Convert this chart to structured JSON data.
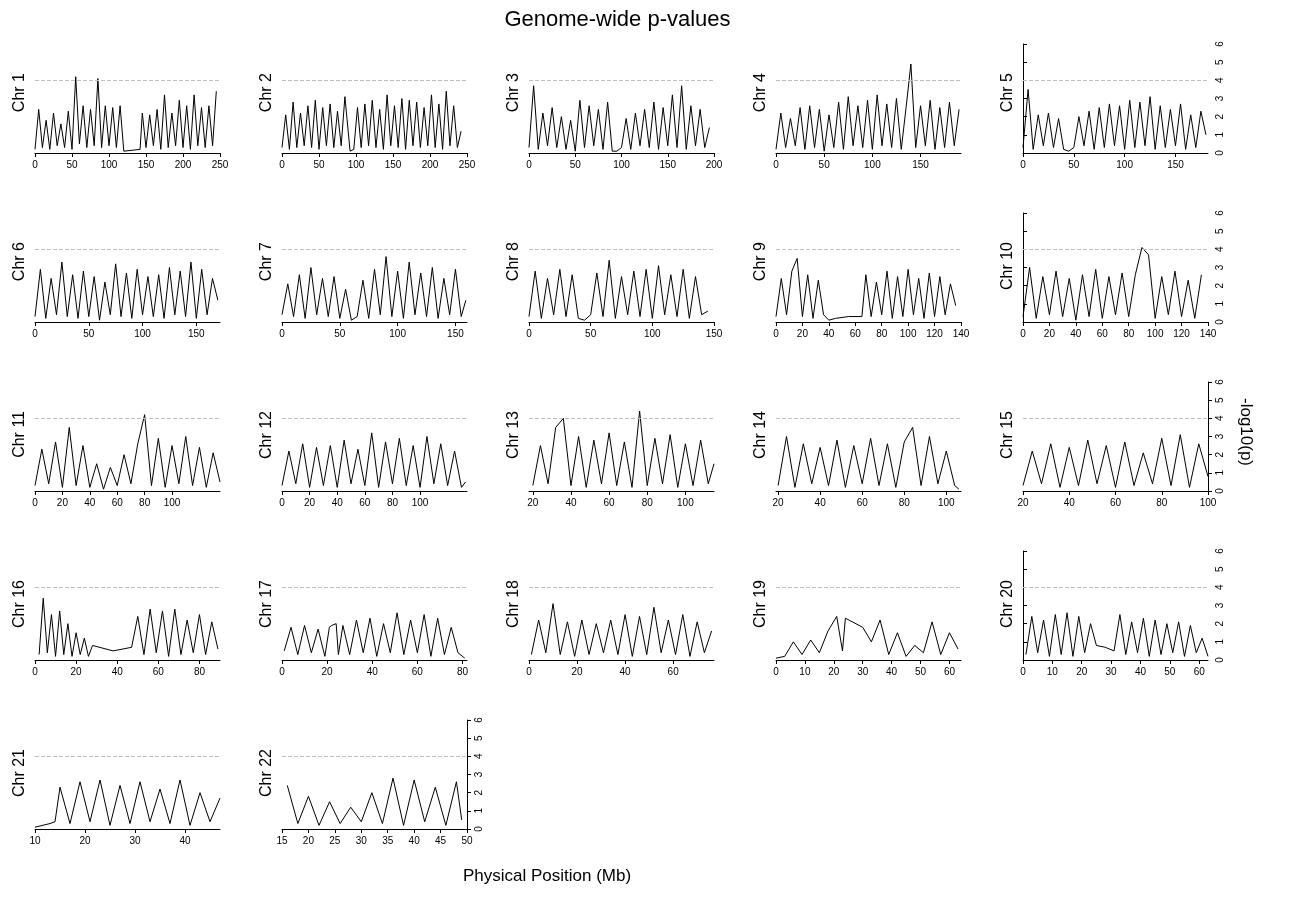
{
  "chart_data": [
    {
      "type": "line",
      "ylabel": "Chr 1",
      "xlim": [
        0,
        250
      ],
      "xticks": [
        0,
        50,
        100,
        150,
        200,
        250
      ],
      "ylim": [
        0,
        6
      ],
      "yticks": [
        0,
        1,
        2,
        3,
        4,
        5,
        6
      ],
      "tick_labels": "x",
      "grid": false,
      "marker": "none",
      "color": "#000000",
      "ref_lines": [
        {
          "axis": "y",
          "value": 4,
          "color": "#c0c0c0",
          "line_style": "dashed"
        }
      ],
      "x": [
        0,
        5,
        10,
        15,
        20,
        25,
        30,
        35,
        40,
        45,
        50,
        55,
        60,
        65,
        70,
        75,
        80,
        85,
        90,
        95,
        100,
        105,
        110,
        115,
        120,
        142,
        145,
        150,
        155,
        160,
        165,
        170,
        175,
        180,
        185,
        190,
        195,
        200,
        205,
        210,
        215,
        220,
        225,
        230,
        235,
        240,
        245
      ],
      "values": [
        0.2,
        2.4,
        0.3,
        1.8,
        0.2,
        2.2,
        0.4,
        1.6,
        0.3,
        2.3,
        0.2,
        4.2,
        0.5,
        2.6,
        0.3,
        2.4,
        0.4,
        4.1,
        0.3,
        2.6,
        0.4,
        2.5,
        0.3,
        2.6,
        0.1,
        0.2,
        2.2,
        0.3,
        2.1,
        0.4,
        2.4,
        0.2,
        3.2,
        0.3,
        2.2,
        0.4,
        2.9,
        0.3,
        2.6,
        0.2,
        3.2,
        0.4,
        2.5,
        0.3,
        2.6,
        0.4,
        3.4
      ]
    },
    {
      "type": "line",
      "ylabel": "Chr 2",
      "xlim": [
        0,
        250
      ],
      "xticks": [
        0,
        50,
        100,
        150,
        200,
        250
      ],
      "ylim": [
        0,
        6
      ],
      "yticks": [
        0,
        1,
        2,
        3,
        4,
        5,
        6
      ],
      "tick_labels": "x",
      "grid": false,
      "marker": "none",
      "color": "#000000",
      "ref_lines": [
        {
          "axis": "y",
          "value": 4,
          "color": "#c0c0c0",
          "line_style": "dashed"
        }
      ],
      "x": [
        0,
        5,
        10,
        15,
        20,
        25,
        30,
        35,
        40,
        45,
        50,
        55,
        60,
        65,
        70,
        75,
        80,
        85,
        92,
        97,
        102,
        107,
        112,
        117,
        122,
        127,
        132,
        137,
        142,
        147,
        152,
        157,
        162,
        167,
        172,
        177,
        182,
        187,
        192,
        197,
        202,
        207,
        212,
        217,
        222,
        227,
        232,
        237,
        242
      ],
      "values": [
        0.3,
        2.1,
        0.2,
        2.8,
        0.3,
        2.2,
        0.4,
        2.6,
        0.3,
        2.9,
        0.2,
        2.5,
        0.4,
        2.7,
        0.3,
        2.3,
        0.4,
        3.1,
        0.1,
        0.2,
        2.5,
        0.3,
        2.7,
        0.4,
        2.9,
        0.3,
        2.4,
        0.2,
        3.2,
        0.4,
        2.6,
        0.3,
        3.0,
        0.2,
        2.9,
        0.4,
        2.8,
        0.3,
        2.5,
        0.4,
        3.2,
        0.3,
        2.7,
        0.2,
        3.4,
        0.4,
        2.6,
        0.3,
        1.2
      ]
    },
    {
      "type": "line",
      "title": "Genome-wide p-values",
      "ylabel": "Chr 3",
      "xlim": [
        0,
        200
      ],
      "xticks": [
        0,
        50,
        100,
        150,
        200
      ],
      "ylim": [
        0,
        6
      ],
      "yticks": [
        0,
        1,
        2,
        3,
        4,
        5,
        6
      ],
      "tick_labels": "x",
      "grid": false,
      "marker": "none",
      "color": "#000000",
      "ref_lines": [
        {
          "axis": "y",
          "value": 4,
          "color": "#c0c0c0",
          "line_style": "dashed"
        }
      ],
      "x": [
        0,
        5,
        10,
        15,
        20,
        25,
        30,
        35,
        40,
        45,
        50,
        55,
        60,
        65,
        70,
        75,
        80,
        85,
        90,
        95,
        100,
        105,
        110,
        115,
        120,
        125,
        130,
        135,
        140,
        145,
        150,
        155,
        160,
        165,
        170,
        175,
        180,
        185,
        190,
        195
      ],
      "values": [
        0.3,
        3.7,
        0.2,
        2.2,
        0.4,
        2.5,
        0.3,
        2.0,
        0.2,
        1.8,
        0.1,
        2.9,
        0.3,
        2.6,
        0.4,
        2.4,
        0.2,
        2.8,
        0.1,
        0.1,
        0.3,
        1.9,
        0.2,
        2.2,
        0.4,
        2.4,
        0.3,
        2.8,
        0.2,
        2.5,
        0.4,
        3.2,
        0.3,
        3.7,
        0.2,
        2.6,
        0.4,
        2.4,
        0.3,
        1.4
      ]
    },
    {
      "type": "line",
      "ylabel": "Chr 4",
      "xlim": [
        0,
        192
      ],
      "xticks": [
        0,
        50,
        100,
        150
      ],
      "ylim": [
        0,
        6
      ],
      "yticks": [
        0,
        1,
        2,
        3,
        4,
        5,
        6
      ],
      "tick_labels": "x",
      "grid": false,
      "marker": "none",
      "color": "#000000",
      "ref_lines": [
        {
          "axis": "y",
          "value": 4,
          "color": "#c0c0c0",
          "line_style": "dashed"
        }
      ],
      "x": [
        0,
        5,
        10,
        15,
        20,
        25,
        30,
        35,
        40,
        45,
        50,
        55,
        60,
        65,
        70,
        75,
        80,
        85,
        90,
        95,
        100,
        105,
        110,
        115,
        120,
        125,
        130,
        135,
        140,
        145,
        150,
        155,
        160,
        165,
        170,
        175,
        180,
        185,
        190
      ],
      "values": [
        0.2,
        2.2,
        0.3,
        1.9,
        0.4,
        2.5,
        0.2,
        2.6,
        0.3,
        2.4,
        0.1,
        2.1,
        0.3,
        2.8,
        0.2,
        3.1,
        0.4,
        2.6,
        0.3,
        2.9,
        0.2,
        3.2,
        0.4,
        2.7,
        0.3,
        3.0,
        0.2,
        2.5,
        4.9,
        0.3,
        2.6,
        0.4,
        2.9,
        0.2,
        2.5,
        0.3,
        2.8,
        0.4,
        2.4
      ]
    },
    {
      "type": "line",
      "ylabel": "Chr 5",
      "xlim": [
        0,
        182
      ],
      "xticks": [
        0,
        50,
        100,
        150
      ],
      "ylim": [
        0,
        6
      ],
      "yticks": [
        0,
        1,
        2,
        3,
        4,
        5,
        6
      ],
      "grid": false,
      "marker": "none",
      "color": "#000000",
      "ref_lines": [
        {
          "axis": "y",
          "value": 4,
          "color": "#c0c0c0",
          "line_style": "dashed"
        }
      ],
      "x": [
        0,
        5,
        10,
        15,
        20,
        25,
        30,
        35,
        40,
        45,
        50,
        55,
        60,
        65,
        70,
        75,
        80,
        85,
        90,
        95,
        100,
        105,
        110,
        115,
        120,
        125,
        130,
        135,
        140,
        145,
        150,
        155,
        160,
        165,
        170,
        175,
        180
      ],
      "values": [
        0.3,
        3.5,
        0.2,
        2.1,
        0.4,
        2.2,
        0.3,
        1.9,
        0.2,
        0.1,
        0.3,
        2.0,
        0.4,
        2.3,
        0.2,
        2.5,
        0.3,
        2.7,
        0.4,
        2.6,
        0.2,
        2.9,
        0.3,
        2.8,
        0.4,
        3.1,
        0.2,
        2.6,
        0.3,
        2.4,
        0.4,
        2.7,
        0.2,
        2.1,
        0.3,
        2.3,
        1.0
      ]
    },
    {
      "type": "line",
      "ylabel": "Chr 6",
      "xlim": [
        0,
        172
      ],
      "xticks": [
        0,
        50,
        100,
        150
      ],
      "ylim": [
        0,
        6
      ],
      "yticks": [
        0,
        1,
        2,
        3,
        4,
        5,
        6
      ],
      "tick_labels": "x",
      "grid": false,
      "marker": "none",
      "color": "#000000",
      "ref_lines": [
        {
          "axis": "y",
          "value": 4,
          "color": "#c0c0c0",
          "line_style": "dashed"
        }
      ],
      "x": [
        0,
        5,
        10,
        15,
        20,
        25,
        30,
        35,
        40,
        45,
        50,
        55,
        60,
        65,
        70,
        75,
        80,
        85,
        90,
        95,
        100,
        105,
        110,
        115,
        120,
        125,
        130,
        135,
        140,
        145,
        150,
        155,
        160,
        165,
        170
      ],
      "values": [
        0.3,
        2.9,
        0.2,
        2.4,
        0.4,
        3.3,
        0.3,
        2.6,
        0.2,
        2.8,
        0.3,
        2.5,
        0.1,
        2.2,
        0.4,
        3.2,
        0.3,
        2.7,
        0.2,
        2.9,
        0.4,
        2.5,
        0.3,
        2.6,
        0.2,
        3.0,
        0.4,
        2.8,
        0.3,
        3.3,
        0.2,
        2.9,
        0.4,
        2.4,
        1.2
      ]
    },
    {
      "type": "line",
      "ylabel": "Chr 7",
      "xlim": [
        0,
        160
      ],
      "xticks": [
        0,
        50,
        100,
        150
      ],
      "ylim": [
        0,
        6
      ],
      "yticks": [
        0,
        1,
        2,
        3,
        4,
        5,
        6
      ],
      "tick_labels": "x",
      "grid": false,
      "marker": "none",
      "color": "#000000",
      "ref_lines": [
        {
          "axis": "y",
          "value": 4,
          "color": "#c0c0c0",
          "line_style": "dashed"
        }
      ],
      "x": [
        0,
        5,
        10,
        15,
        20,
        25,
        30,
        35,
        40,
        45,
        50,
        55,
        60,
        65,
        70,
        75,
        80,
        85,
        90,
        95,
        100,
        105,
        110,
        115,
        120,
        125,
        130,
        135,
        140,
        145,
        150,
        155,
        159
      ],
      "values": [
        0.4,
        2.1,
        0.3,
        2.6,
        0.2,
        3.0,
        0.4,
        2.4,
        0.3,
        2.5,
        0.2,
        1.8,
        0.1,
        0.3,
        2.3,
        0.2,
        2.9,
        0.4,
        3.6,
        0.3,
        2.8,
        0.2,
        3.3,
        0.4,
        2.7,
        0.3,
        3.0,
        0.2,
        2.4,
        0.4,
        2.9,
        0.3,
        1.2
      ]
    },
    {
      "type": "line",
      "ylabel": "Chr 8",
      "xlim": [
        0,
        150
      ],
      "xticks": [
        0,
        50,
        100,
        150
      ],
      "ylim": [
        0,
        6
      ],
      "yticks": [
        0,
        1,
        2,
        3,
        4,
        5,
        6
      ],
      "tick_labels": "x",
      "grid": false,
      "marker": "none",
      "color": "#000000",
      "ref_lines": [
        {
          "axis": "y",
          "value": 4,
          "color": "#c0c0c0",
          "line_style": "dashed"
        }
      ],
      "x": [
        0,
        5,
        10,
        15,
        20,
        25,
        30,
        35,
        40,
        45,
        50,
        55,
        60,
        65,
        70,
        75,
        80,
        85,
        90,
        95,
        100,
        105,
        110,
        115,
        120,
        125,
        130,
        135,
        140,
        145
      ],
      "values": [
        0.3,
        2.8,
        0.2,
        2.4,
        0.4,
        2.9,
        0.3,
        2.6,
        0.2,
        0.1,
        0.4,
        2.7,
        0.3,
        3.4,
        0.2,
        2.5,
        0.4,
        2.8,
        0.3,
        2.9,
        0.2,
        3.1,
        0.4,
        2.6,
        0.3,
        2.9,
        0.2,
        2.5,
        0.4,
        0.6
      ]
    },
    {
      "type": "line",
      "ylabel": "Chr 9",
      "xlim": [
        0,
        140
      ],
      "xticks": [
        0,
        20,
        40,
        60,
        80,
        100,
        120,
        140
      ],
      "ylim": [
        0,
        6
      ],
      "yticks": [
        0,
        1,
        2,
        3,
        4,
        5,
        6
      ],
      "tick_labels": "x",
      "grid": false,
      "marker": "none",
      "color": "#000000",
      "ref_lines": [
        {
          "axis": "y",
          "value": 4,
          "color": "#c0c0c0",
          "line_style": "dashed"
        }
      ],
      "x": [
        0,
        4,
        8,
        12,
        16,
        20,
        24,
        28,
        32,
        36,
        40,
        45,
        55,
        65,
        68,
        72,
        76,
        80,
        84,
        88,
        92,
        96,
        100,
        104,
        108,
        112,
        116,
        120,
        124,
        128,
        132,
        136
      ],
      "values": [
        0.3,
        2.4,
        0.4,
        2.8,
        3.5,
        0.3,
        2.6,
        0.2,
        2.3,
        0.4,
        0.1,
        0.2,
        0.3,
        0.3,
        2.6,
        0.3,
        2.2,
        0.4,
        2.8,
        0.2,
        2.5,
        0.3,
        2.9,
        0.4,
        2.4,
        0.2,
        2.7,
        0.3,
        2.5,
        0.4,
        2.1,
        0.9
      ]
    },
    {
      "type": "line",
      "ylabel": "Chr 10",
      "xlim": [
        0,
        140
      ],
      "xticks": [
        0,
        20,
        40,
        60,
        80,
        100,
        120,
        140
      ],
      "ylim": [
        0,
        6
      ],
      "yticks": [
        0,
        1,
        2,
        3,
        4,
        5,
        6
      ],
      "grid": false,
      "marker": "none",
      "color": "#000000",
      "ref_lines": [
        {
          "axis": "y",
          "value": 4,
          "color": "#c0c0c0",
          "line_style": "dashed"
        }
      ],
      "x": [
        0,
        5,
        10,
        15,
        20,
        25,
        30,
        35,
        40,
        45,
        50,
        55,
        60,
        65,
        70,
        75,
        80,
        85,
        90,
        95,
        100,
        105,
        110,
        115,
        120,
        125,
        130,
        135
      ],
      "values": [
        0.3,
        3.0,
        0.2,
        2.5,
        0.4,
        2.8,
        0.3,
        2.4,
        0.1,
        2.6,
        0.3,
        2.9,
        0.2,
        2.5,
        0.4,
        2.7,
        0.3,
        2.6,
        4.1,
        3.7,
        0.2,
        2.5,
        0.4,
        2.8,
        0.3,
        2.3,
        0.2,
        2.6
      ]
    },
    {
      "type": "line",
      "ylabel": "Chr 11",
      "xlim": [
        0,
        135
      ],
      "xticks": [
        0,
        20,
        40,
        60,
        80,
        100
      ],
      "ylim": [
        0,
        6
      ],
      "yticks": [
        0,
        1,
        2,
        3,
        4,
        5,
        6
      ],
      "tick_labels": "x",
      "grid": false,
      "marker": "none",
      "color": "#000000",
      "ref_lines": [
        {
          "axis": "y",
          "value": 4,
          "color": "#c0c0c0",
          "line_style": "dashed"
        }
      ],
      "x": [
        0,
        5,
        10,
        15,
        20,
        25,
        30,
        35,
        40,
        45,
        50,
        55,
        60,
        65,
        70,
        75,
        80,
        85,
        90,
        95,
        100,
        105,
        110,
        115,
        120,
        125,
        130,
        135
      ],
      "values": [
        0.3,
        2.3,
        0.4,
        2.7,
        0.2,
        3.5,
        0.3,
        2.5,
        0.2,
        1.5,
        0.1,
        1.3,
        0.3,
        2.0,
        0.4,
        2.6,
        4.2,
        0.3,
        2.9,
        0.2,
        2.5,
        0.4,
        3.0,
        0.3,
        2.4,
        0.2,
        2.1,
        0.5
      ]
    },
    {
      "type": "line",
      "ylabel": "Chr 12",
      "xlim": [
        0,
        134
      ],
      "xticks": [
        0,
        20,
        40,
        60,
        80,
        100
      ],
      "ylim": [
        0,
        6
      ],
      "yticks": [
        0,
        1,
        2,
        3,
        4,
        5,
        6
      ],
      "tick_labels": "x",
      "grid": false,
      "marker": "none",
      "color": "#000000",
      "ref_lines": [
        {
          "axis": "y",
          "value": 4,
          "color": "#c0c0c0",
          "line_style": "dashed"
        }
      ],
      "x": [
        0,
        5,
        10,
        15,
        20,
        25,
        30,
        35,
        40,
        45,
        50,
        55,
        60,
        65,
        70,
        75,
        80,
        85,
        90,
        95,
        100,
        105,
        110,
        115,
        120,
        125,
        130,
        133
      ],
      "values": [
        0.3,
        2.2,
        0.4,
        2.6,
        0.2,
        2.4,
        0.3,
        2.5,
        0.2,
        2.8,
        0.4,
        2.3,
        0.3,
        3.2,
        0.2,
        2.7,
        0.4,
        2.9,
        0.3,
        2.5,
        0.2,
        3.0,
        0.4,
        2.6,
        0.3,
        2.2,
        0.2,
        0.5
      ]
    },
    {
      "type": "line",
      "ylabel": "Chr 13",
      "xlim": [
        18,
        115
      ],
      "xticks": [
        20,
        40,
        60,
        80,
        100
      ],
      "ylim": [
        0,
        6
      ],
      "yticks": [
        0,
        1,
        2,
        3,
        4,
        5,
        6
      ],
      "tick_labels": "x",
      "grid": false,
      "marker": "none",
      "color": "#000000",
      "ref_lines": [
        {
          "axis": "y",
          "value": 4,
          "color": "#c0c0c0",
          "line_style": "dashed"
        }
      ],
      "x": [
        20,
        24,
        28,
        32,
        36,
        40,
        44,
        48,
        52,
        56,
        60,
        64,
        68,
        72,
        76,
        80,
        84,
        88,
        92,
        96,
        100,
        104,
        108,
        112,
        115
      ],
      "values": [
        0.3,
        2.5,
        0.4,
        3.5,
        4.0,
        0.3,
        3.0,
        0.2,
        2.8,
        0.4,
        3.2,
        0.3,
        2.7,
        0.2,
        4.4,
        0.3,
        2.9,
        0.4,
        3.1,
        0.2,
        2.6,
        0.3,
        2.8,
        0.4,
        1.5
      ]
    },
    {
      "type": "line",
      "ylabel": "Chr 14",
      "xlim": [
        19,
        107
      ],
      "xticks": [
        20,
        40,
        60,
        80,
        100
      ],
      "ylim": [
        0,
        6
      ],
      "yticks": [
        0,
        1,
        2,
        3,
        4,
        5,
        6
      ],
      "tick_labels": "x",
      "grid": false,
      "marker": "none",
      "color": "#000000",
      "ref_lines": [
        {
          "axis": "y",
          "value": 4,
          "color": "#c0c0c0",
          "line_style": "dashed"
        }
      ],
      "x": [
        20,
        24,
        28,
        32,
        36,
        40,
        44,
        48,
        52,
        56,
        60,
        64,
        68,
        72,
        76,
        80,
        84,
        88,
        92,
        96,
        100,
        104,
        106
      ],
      "values": [
        0.3,
        3.0,
        0.2,
        2.6,
        0.4,
        2.4,
        0.3,
        2.8,
        0.2,
        2.5,
        0.4,
        2.9,
        0.3,
        2.6,
        0.2,
        2.7,
        3.5,
        0.3,
        3.0,
        0.4,
        2.2,
        0.3,
        0.1
      ]
    },
    {
      "type": "line",
      "annotations": [
        "-log10(p)"
      ],
      "ylabel": "Chr 15",
      "xlim": [
        20,
        100
      ],
      "xticks": [
        20,
        40,
        60,
        80,
        100
      ],
      "ylim": [
        0,
        6
      ],
      "yticks": [
        0,
        1,
        2,
        3,
        4,
        5,
        6
      ],
      "grid": false,
      "marker": "none",
      "color": "#000000",
      "ref_lines": [
        {
          "axis": "y",
          "value": 4,
          "color": "#c0c0c0",
          "line_style": "dashed"
        }
      ],
      "x": [
        20,
        24,
        28,
        32,
        36,
        40,
        44,
        48,
        52,
        56,
        60,
        64,
        68,
        72,
        76,
        80,
        84,
        88,
        92,
        96,
        100
      ],
      "values": [
        0.3,
        2.2,
        0.4,
        2.6,
        0.2,
        2.4,
        0.3,
        2.8,
        0.4,
        2.5,
        0.2,
        2.7,
        0.3,
        2.1,
        0.4,
        2.9,
        0.3,
        3.1,
        0.2,
        2.6,
        0.8
      ]
    },
    {
      "type": "line",
      "ylabel": "Chr 16",
      "xlim": [
        0,
        90
      ],
      "xticks": [
        0,
        20,
        40,
        60,
        80
      ],
      "ylim": [
        0,
        6
      ],
      "yticks": [
        0,
        1,
        2,
        3,
        4,
        5,
        6
      ],
      "tick_labels": "x",
      "grid": false,
      "marker": "none",
      "color": "#000000",
      "ref_lines": [
        {
          "axis": "y",
          "value": 4,
          "color": "#c0c0c0",
          "line_style": "dashed"
        }
      ],
      "x": [
        2,
        4,
        6,
        8,
        10,
        12,
        14,
        16,
        18,
        20,
        22,
        24,
        26,
        28,
        38,
        47,
        50,
        53,
        56,
        59,
        62,
        65,
        68,
        71,
        74,
        77,
        80,
        83,
        86,
        89
      ],
      "values": [
        0.3,
        3.4,
        0.4,
        2.5,
        0.2,
        2.7,
        0.3,
        2.0,
        0.2,
        1.5,
        0.3,
        1.2,
        0.2,
        0.8,
        0.5,
        0.7,
        2.4,
        0.3,
        2.8,
        0.4,
        2.7,
        0.2,
        2.8,
        0.3,
        2.2,
        0.4,
        2.5,
        0.3,
        2.1,
        0.6
      ]
    },
    {
      "type": "line",
      "ylabel": "Chr 17",
      "xlim": [
        0,
        82
      ],
      "xticks": [
        0,
        20,
        40,
        60,
        80
      ],
      "ylim": [
        0,
        6
      ],
      "yticks": [
        0,
        1,
        2,
        3,
        4,
        5,
        6
      ],
      "tick_labels": "x",
      "grid": false,
      "marker": "none",
      "color": "#000000",
      "ref_lines": [
        {
          "axis": "y",
          "value": 4,
          "color": "#c0c0c0",
          "line_style": "dashed"
        }
      ],
      "x": [
        1,
        4,
        7,
        10,
        13,
        16,
        19,
        21,
        22,
        24,
        25,
        27,
        30,
        33,
        36,
        39,
        42,
        45,
        48,
        51,
        54,
        57,
        60,
        63,
        66,
        69,
        72,
        75,
        78,
        81
      ],
      "values": [
        0.5,
        1.8,
        0.3,
        1.9,
        0.4,
        1.7,
        0.2,
        1.8,
        1.9,
        2.0,
        0.3,
        1.9,
        0.3,
        2.2,
        0.4,
        2.3,
        0.2,
        2.0,
        0.4,
        2.6,
        0.3,
        2.2,
        0.4,
        2.5,
        0.2,
        2.3,
        0.3,
        1.8,
        0.4,
        0.1
      ]
    },
    {
      "type": "line",
      "ylabel": "Chr 18",
      "xlim": [
        0,
        77
      ],
      "xticks": [
        0,
        20,
        40,
        60
      ],
      "ylim": [
        0,
        6
      ],
      "yticks": [
        0,
        1,
        2,
        3,
        4,
        5,
        6
      ],
      "tick_labels": "x",
      "grid": false,
      "marker": "none",
      "color": "#000000",
      "ref_lines": [
        {
          "axis": "y",
          "value": 4,
          "color": "#c0c0c0",
          "line_style": "dashed"
        }
      ],
      "x": [
        1,
        4,
        7,
        10,
        13,
        16,
        19,
        22,
        25,
        28,
        31,
        34,
        37,
        40,
        43,
        46,
        49,
        52,
        55,
        58,
        61,
        64,
        67,
        70,
        73,
        76
      ],
      "values": [
        0.3,
        2.2,
        0.4,
        3.1,
        0.3,
        2.1,
        0.2,
        2.2,
        0.3,
        2.0,
        0.4,
        2.2,
        0.3,
        2.5,
        0.2,
        2.4,
        0.3,
        2.9,
        0.4,
        2.2,
        0.3,
        2.5,
        0.2,
        2.1,
        0.4,
        1.6
      ]
    },
    {
      "type": "line",
      "ylabel": "Chr 19",
      "xlim": [
        0,
        64
      ],
      "xticks": [
        0,
        10,
        20,
        30,
        40,
        50,
        60
      ],
      "ylim": [
        0,
        6
      ],
      "yticks": [
        0,
        1,
        2,
        3,
        4,
        5,
        6
      ],
      "tick_labels": "x",
      "grid": false,
      "marker": "none",
      "color": "#000000",
      "ref_lines": [
        {
          "axis": "y",
          "value": 4,
          "color": "#c0c0c0",
          "line_style": "dashed"
        }
      ],
      "x": [
        0,
        3,
        6,
        9,
        12,
        15,
        18,
        21,
        23,
        24,
        30,
        33,
        36,
        39,
        42,
        45,
        48,
        51,
        54,
        57,
        60,
        63
      ],
      "values": [
        0.1,
        0.2,
        1.0,
        0.3,
        1.1,
        0.4,
        1.6,
        2.4,
        0.5,
        2.3,
        1.8,
        1.0,
        2.2,
        0.3,
        1.5,
        0.2,
        0.8,
        0.4,
        2.1,
        0.3,
        1.5,
        0.6
      ]
    },
    {
      "type": "line",
      "ylabel": "Chr 20",
      "xlim": [
        0,
        63
      ],
      "xticks": [
        0,
        10,
        20,
        30,
        40,
        50,
        60
      ],
      "ylim": [
        0,
        6
      ],
      "yticks": [
        0,
        1,
        2,
        3,
        4,
        5,
        6
      ],
      "grid": false,
      "marker": "none",
      "color": "#000000",
      "ref_lines": [
        {
          "axis": "y",
          "value": 4,
          "color": "#c0c0c0",
          "line_style": "dashed"
        }
      ],
      "x": [
        1,
        3,
        5,
        7,
        9,
        11,
        13,
        15,
        17,
        19,
        21,
        23,
        25,
        28,
        31,
        33,
        35,
        37,
        39,
        41,
        43,
        45,
        47,
        49,
        51,
        53,
        55,
        57,
        59,
        61,
        63
      ],
      "values": [
        0.3,
        2.4,
        0.4,
        2.2,
        0.2,
        2.5,
        0.3,
        2.6,
        0.2,
        2.4,
        0.4,
        2.0,
        0.8,
        0.7,
        0.5,
        2.5,
        0.3,
        2.1,
        0.4,
        2.3,
        0.2,
        2.2,
        0.3,
        2.0,
        0.4,
        2.1,
        0.2,
        1.9,
        0.4,
        1.2,
        0.2
      ]
    },
    {
      "type": "line",
      "ylabel": "Chr 21",
      "xlim": [
        10,
        47
      ],
      "xticks": [
        10,
        20,
        30,
        40
      ],
      "ylim": [
        0,
        6
      ],
      "yticks": [
        0,
        1,
        2,
        3,
        4,
        5,
        6
      ],
      "tick_labels": "x",
      "grid": false,
      "marker": "none",
      "color": "#000000",
      "ref_lines": [
        {
          "axis": "y",
          "value": 4,
          "color": "#c0c0c0",
          "line_style": "dashed"
        }
      ],
      "x": [
        10,
        13,
        14,
        15,
        17,
        19,
        21,
        23,
        25,
        27,
        29,
        31,
        33,
        35,
        37,
        39,
        41,
        43,
        45,
        47
      ],
      "values": [
        0.1,
        0.3,
        0.4,
        2.3,
        0.3,
        2.6,
        0.4,
        2.7,
        0.2,
        2.4,
        0.3,
        2.6,
        0.4,
        2.2,
        0.3,
        2.7,
        0.2,
        2.0,
        0.4,
        1.7
      ]
    },
    {
      "type": "line",
      "xlabel": "Physical Position (Mb)",
      "ylabel": "Chr 22",
      "xlim": [
        15,
        50
      ],
      "xticks": [
        15,
        20,
        25,
        30,
        35,
        40,
        45,
        50
      ],
      "ylim": [
        0,
        6
      ],
      "yticks": [
        0,
        1,
        2,
        3,
        4,
        5,
        6
      ],
      "grid": false,
      "marker": "none",
      "color": "#000000",
      "ref_lines": [
        {
          "axis": "y",
          "value": 4,
          "color": "#c0c0c0",
          "line_style": "dashed"
        }
      ],
      "x": [
        16,
        18,
        20,
        22,
        24,
        26,
        28,
        30,
        32,
        34,
        36,
        38,
        40,
        42,
        44,
        46,
        48,
        49
      ],
      "values": [
        2.4,
        0.3,
        1.8,
        0.2,
        1.5,
        0.3,
        1.2,
        0.4,
        2.0,
        0.3,
        2.8,
        0.2,
        2.7,
        0.4,
        2.3,
        0.2,
        2.6,
        0.5
      ]
    }
  ]
}
